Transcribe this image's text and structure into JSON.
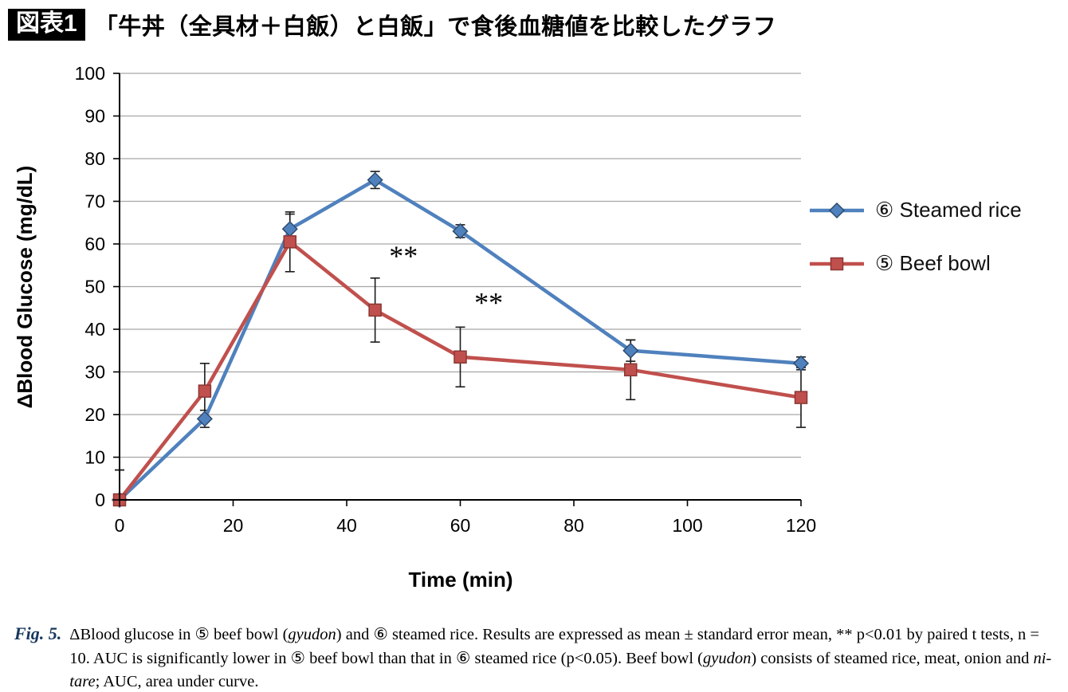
{
  "header": {
    "tag": "図表1",
    "title": "「牛丼（全具材＋白飯）と白飯」で食後血糖値を比較したグラフ"
  },
  "chart_data": {
    "type": "line",
    "x": [
      0,
      15,
      30,
      45,
      60,
      90,
      120
    ],
    "series": [
      {
        "name": "⑥ Steamed rice",
        "marker": "diamond",
        "color": "#4f81bd",
        "marker_edge": "#2e4b6e",
        "values": [
          0,
          19,
          63.5,
          75,
          63,
          35,
          32
        ],
        "errors": [
          7,
          2,
          3.5,
          2,
          1.5,
          2.5,
          1.5
        ]
      },
      {
        "name": "⑤ Beef bowl",
        "marker": "square",
        "color": "#c0504d",
        "marker_edge": "#8b3734",
        "values": [
          0,
          25.5,
          60.5,
          44.5,
          33.5,
          30.5,
          24
        ],
        "errors": [
          7,
          6.5,
          7,
          7.5,
          7,
          7,
          7
        ]
      }
    ],
    "xlabel": "Time (min)",
    "ylabel": "ΔBlood Glucose (mg/dL)",
    "xlim": [
      0,
      120
    ],
    "ylim": [
      0,
      100
    ],
    "xticks": [
      0,
      20,
      40,
      60,
      80,
      100,
      120
    ],
    "yticks": [
      0,
      10,
      20,
      30,
      40,
      50,
      60,
      70,
      80,
      90,
      100
    ],
    "grid": true,
    "grid_color": "#a6a6a6",
    "axis_color": "#000000",
    "error_bar_color": "#1a1a1a",
    "legend_position": "right",
    "annotations": [
      {
        "text": "**",
        "x": 50,
        "y": 55
      },
      {
        "text": "**",
        "x": 65,
        "y": 44
      }
    ]
  },
  "caption": {
    "label": "Fig. 5.",
    "label_color": "#17365d",
    "segments": [
      {
        "t": "ΔBlood glucose in ⑤ beef bowl (",
        "i": false
      },
      {
        "t": "gyudon",
        "i": true
      },
      {
        "t": ") and ⑥ steamed rice. Results are expressed as mean ± standard error mean, ** p<0.01 by paired t tests, n = 10. AUC is significantly lower in ⑤ beef bowl than that in ⑥ steamed rice (p<0.05). Beef bowl (",
        "i": false
      },
      {
        "t": "gyudon",
        "i": true
      },
      {
        "t": ") consists of steamed rice, meat, onion and ",
        "i": false
      },
      {
        "t": "ni-tare",
        "i": true
      },
      {
        "t": "; AUC, area under curve.",
        "i": false
      }
    ]
  }
}
